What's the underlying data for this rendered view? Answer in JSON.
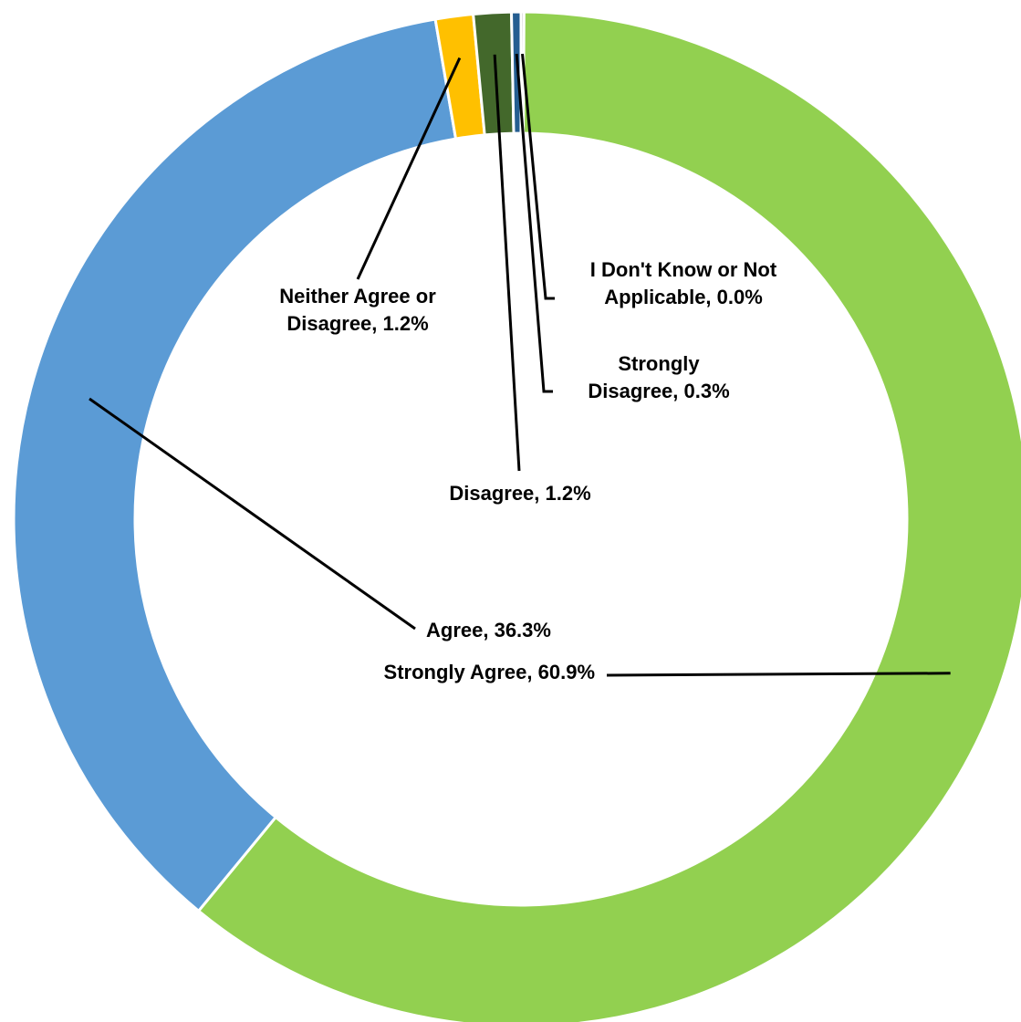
{
  "chart_data": {
    "type": "pie",
    "title": "",
    "categories": [
      "Strongly Agree",
      "Agree",
      "Neither Agree or Disagree",
      "Disagree",
      "Strongly Disagree",
      "I Don't Know or Not Applicable"
    ],
    "values": [
      60.9,
      36.3,
      1.2,
      1.2,
      0.3,
      0.0
    ],
    "colors": [
      "#92d050",
      "#5b9bd5",
      "#ffc000",
      "#43682b",
      "#255e91",
      "#a5a5a5"
    ],
    "labels": [
      [
        "Strongly Agree, 60.9%"
      ],
      [
        "Agree, 36.3%"
      ],
      [
        "Neither Agree or",
        "Disagree, 1.2%"
      ],
      [
        "Disagree, 1.2%"
      ],
      [
        "Strongly",
        "Disagree, 0.3%"
      ],
      [
        "I Don't Know or Not",
        "Applicable, 0.0%"
      ]
    ],
    "donut": true,
    "legend": "none"
  }
}
